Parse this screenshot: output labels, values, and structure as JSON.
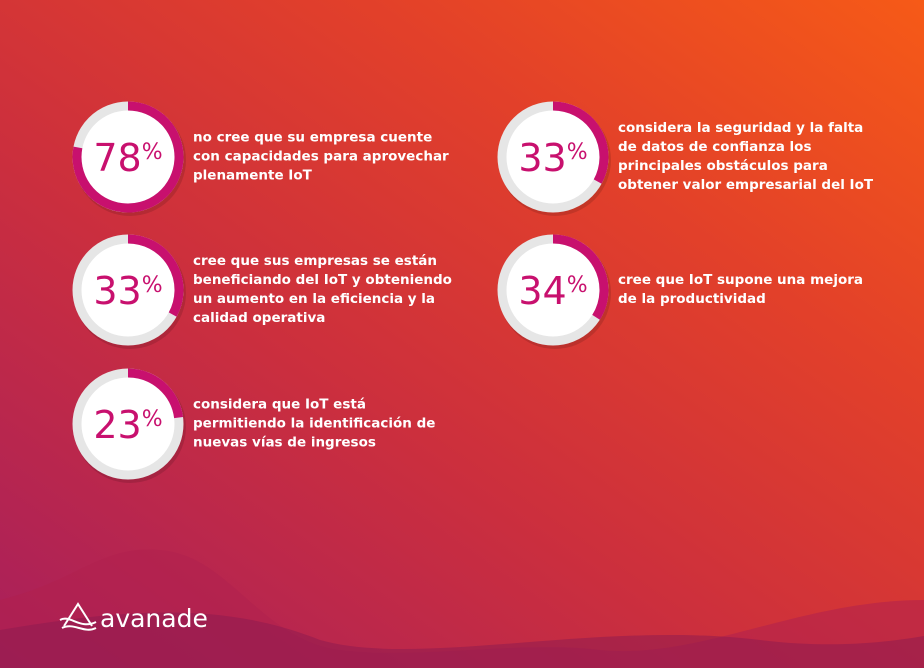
{
  "chart_data": {
    "type": "ring",
    "unit": "%",
    "values": [
      78,
      33,
      23,
      33,
      34
    ],
    "descriptions": [
      "no cree que su empresa cuente con capacidades para aprovechar plenamente IoT",
      "cree que sus empresas se están beneficiando del IoT y obteniendo un aumento en la eficiencia y la calidad operativa",
      "considera que IoT está permitiendo la identificación de nuevas vías de ingresos",
      "considera la seguridad y la falta de datos de confianza los principales obstáculos para obtener valor empresarial del IoT",
      "cree que IoT supone una mejora de la productividad"
    ],
    "ylim": [
      0,
      100
    ],
    "color": "#c8106e"
  },
  "brand": "avanade"
}
